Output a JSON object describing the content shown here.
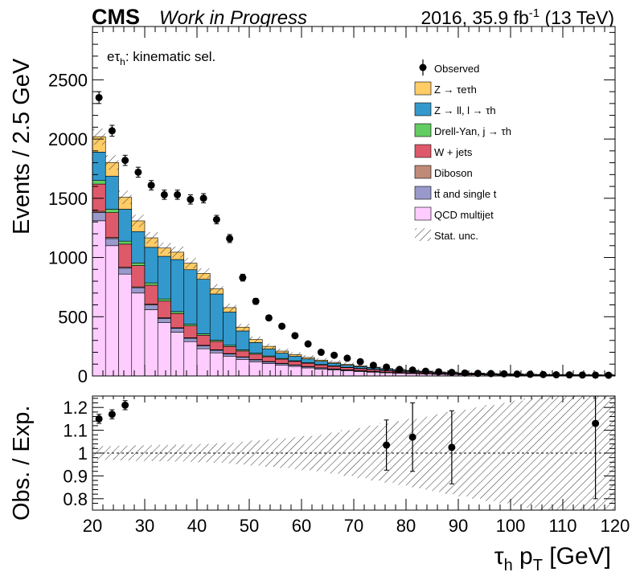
{
  "header": {
    "experiment": "CMS",
    "status": "Work in Progress",
    "lumi_prefix": "2016, 35.9 fb",
    "lumi_exp": "-1",
    "lumi_suffix": " (13 TeV)"
  },
  "chart_data": [
    {
      "type": "stacked-histogram",
      "annotation_main": "eτ",
      "annotation_sub": "h",
      "annotation_rest": ": kinematic sel.",
      "ylabel": "Events / 2.5 GeV",
      "ylim": [
        0,
        2950
      ],
      "yticks": [
        0,
        500,
        1000,
        1500,
        2000,
        2500
      ],
      "ytick_labels": [
        "0",
        "500",
        "1000",
        "1500",
        "2000",
        "2500"
      ],
      "xlim": [
        20,
        120
      ],
      "bin_width": 2.5,
      "bin_edges_start": 20,
      "legend_position": "top-right",
      "legend": [
        {
          "key": "data",
          "kind": "marker",
          "label": "Observed"
        },
        {
          "key": "ztt",
          "kind": "fill",
          "label": "Z → τeτh"
        },
        {
          "key": "zll",
          "kind": "fill",
          "label": "Z → ll, l → τh"
        },
        {
          "key": "dy_jet",
          "kind": "fill",
          "label": "Drell-Yan, j → τh"
        },
        {
          "key": "wjets",
          "kind": "fill",
          "label": "W + jets"
        },
        {
          "key": "diboson",
          "kind": "fill",
          "label": "Diboson"
        },
        {
          "key": "top",
          "kind": "fill",
          "label": "tt̄ and single t"
        },
        {
          "key": "qcd",
          "kind": "fill",
          "label": "QCD multijet"
        },
        {
          "key": "unc",
          "kind": "hatch",
          "label": "Stat. unc."
        }
      ],
      "colors": {
        "qcd": "#ffccff",
        "top": "#9999cc",
        "diboson": "#c08a78",
        "wjets": "#de5a6a",
        "dy_jet": "#62cd62",
        "zll": "#3399cc",
        "ztt": "#ffcc66",
        "data": "#000000"
      },
      "series": [
        {
          "key": "qcd",
          "values": [
            1310,
            1100,
            860,
            700,
            560,
            450,
            370,
            290,
            230,
            195,
            165,
            140,
            120,
            105,
            92,
            80,
            68,
            58,
            50,
            43,
            37,
            32,
            27,
            23,
            20,
            17,
            14,
            12,
            10,
            9,
            8,
            7,
            6,
            5,
            4,
            4,
            3,
            3,
            3,
            2
          ]
        },
        {
          "key": "top",
          "values": [
            70,
            60,
            50,
            45,
            40,
            36,
            32,
            28,
            25,
            22,
            20,
            18,
            16,
            14,
            12,
            11,
            10,
            9,
            8,
            7,
            6,
            5,
            5,
            4,
            4,
            3,
            3,
            3,
            2,
            2,
            2,
            2,
            2,
            1,
            1,
            1,
            1,
            1,
            1,
            1
          ]
        },
        {
          "key": "diboson",
          "values": [
            10,
            9,
            8,
            7,
            6,
            6,
            5,
            5,
            4,
            4,
            4,
            3,
            3,
            3,
            3,
            2,
            2,
            2,
            2,
            2,
            2,
            2,
            1,
            1,
            1,
            1,
            1,
            1,
            1,
            1,
            1,
            1,
            1,
            1,
            1,
            1,
            1,
            1,
            1,
            1
          ]
        },
        {
          "key": "wjets",
          "values": [
            230,
            210,
            195,
            180,
            160,
            140,
            120,
            100,
            85,
            70,
            60,
            50,
            45,
            40,
            35,
            30,
            27,
            24,
            21,
            18,
            16,
            14,
            12,
            10,
            9,
            8,
            7,
            6,
            5,
            5,
            4,
            4,
            3,
            3,
            3,
            2,
            2,
            2,
            2,
            2
          ]
        },
        {
          "key": "dy_jet",
          "values": [
            30,
            28,
            25,
            22,
            20,
            18,
            16,
            14,
            12,
            11,
            10,
            9,
            8,
            7,
            6,
            5,
            5,
            4,
            4,
            3,
            3,
            3,
            2,
            2,
            2,
            2,
            1,
            1,
            1,
            1,
            1,
            1,
            1,
            1,
            1,
            1,
            1,
            1,
            1,
            1
          ]
        },
        {
          "key": "zll",
          "values": [
            240,
            280,
            270,
            265,
            300,
            360,
            440,
            460,
            460,
            390,
            280,
            160,
            90,
            60,
            45,
            38,
            32,
            27,
            22,
            18,
            15,
            13,
            11,
            9,
            8,
            7,
            6,
            5,
            4,
            4,
            3,
            3,
            3,
            2,
            2,
            2,
            2,
            2,
            1,
            1
          ]
        },
        {
          "key": "ztt",
          "values": [
            130,
            115,
            100,
            90,
            80,
            70,
            62,
            55,
            50,
            44,
            38,
            32,
            26,
            21,
            17,
            14,
            12,
            10,
            8,
            7,
            6,
            5,
            4,
            4,
            3,
            3,
            2,
            2,
            2,
            2,
            1,
            1,
            1,
            1,
            1,
            1,
            1,
            1,
            1,
            1
          ]
        }
      ],
      "stack_order": [
        "qcd",
        "top",
        "diboson",
        "wjets",
        "dy_jet",
        "zll",
        "ztt"
      ],
      "data": {
        "x": [
          21.25,
          23.75,
          26.25,
          28.75,
          31.25,
          33.75,
          36.25,
          38.75,
          41.25,
          43.75,
          46.25,
          48.75,
          51.25,
          53.75,
          56.25,
          58.75,
          61.25,
          63.75,
          66.25,
          68.75,
          71.25,
          73.75,
          76.25,
          78.75,
          81.25,
          83.75,
          86.25,
          88.75,
          91.25,
          93.75,
          96.25,
          98.75,
          101.25,
          103.75,
          106.25,
          108.75,
          111.25,
          113.75,
          116.25,
          118.75
        ],
        "y": [
          2350,
          2070,
          1820,
          1720,
          1610,
          1530,
          1530,
          1490,
          1500,
          1320,
          1160,
          830,
          630,
          490,
          420,
          340,
          270,
          200,
          175,
          150,
          120,
          90,
          75,
          55,
          50,
          40,
          35,
          30,
          25,
          22,
          20,
          18,
          16,
          14,
          12,
          10,
          9,
          8,
          7,
          6
        ],
        "yerr": [
          50,
          46,
          43,
          42,
          40,
          39,
          39,
          39,
          39,
          36,
          34,
          29,
          25,
          22,
          20,
          18,
          16,
          14,
          13,
          12,
          11,
          10,
          9,
          7,
          7,
          6,
          6,
          5,
          5,
          5,
          4,
          4,
          4,
          4,
          3,
          3,
          3,
          3,
          3,
          2
        ]
      },
      "stat_unc_fraction": [
        0.03,
        0.03,
        0.032,
        0.034,
        0.035,
        0.036,
        0.037,
        0.038,
        0.04,
        0.042,
        0.045,
        0.05,
        0.055,
        0.06,
        0.065,
        0.07,
        0.075,
        0.08,
        0.09,
        0.1,
        0.11,
        0.12,
        0.13,
        0.14,
        0.15,
        0.16,
        0.17,
        0.18,
        0.19,
        0.2,
        0.21,
        0.22,
        0.23,
        0.24,
        0.25,
        0.26,
        0.27,
        0.28,
        0.29,
        0.3
      ]
    },
    {
      "type": "ratio",
      "ylabel": "Obs. / Exp.",
      "xlabel_main": "τ",
      "xlabel_sub": "h",
      "xlabel_mid": " p",
      "xlabel_sub2": "T",
      "xlabel_rest": " [GeV]",
      "xlim": [
        20,
        120
      ],
      "ylim": [
        0.75,
        1.25
      ],
      "yticks": [
        0.8,
        0.9,
        1,
        1.1,
        1.2
      ],
      "ytick_labels": [
        "0.8",
        "0.9",
        "1",
        "1.1",
        "1.2"
      ],
      "xticks": [
        20,
        30,
        40,
        50,
        60,
        70,
        80,
        90,
        100,
        110,
        120
      ],
      "xtick_labels": [
        "20",
        "30",
        "40",
        "50",
        "60",
        "70",
        "80",
        "90",
        "100",
        "110",
        "120"
      ],
      "reference_line": 1,
      "points": {
        "x": [
          21.25,
          23.75,
          26.25,
          76.25,
          81.25,
          88.75,
          116.25
        ],
        "y": [
          1.15,
          1.17,
          1.21,
          1.035,
          1.07,
          1.025,
          1.13
        ],
        "yerr": [
          0.02,
          0.02,
          0.02,
          0.11,
          0.15,
          0.16,
          0.33
        ]
      },
      "band_halfwidth": [
        0.03,
        0.03,
        0.032,
        0.034,
        0.035,
        0.036,
        0.037,
        0.038,
        0.04,
        0.042,
        0.045,
        0.05,
        0.055,
        0.06,
        0.065,
        0.07,
        0.075,
        0.08,
        0.09,
        0.1,
        0.11,
        0.12,
        0.13,
        0.14,
        0.15,
        0.16,
        0.17,
        0.18,
        0.19,
        0.2,
        0.21,
        0.22,
        0.23,
        0.24,
        0.25,
        0.26,
        0.27,
        0.28,
        0.29,
        0.3
      ]
    }
  ]
}
